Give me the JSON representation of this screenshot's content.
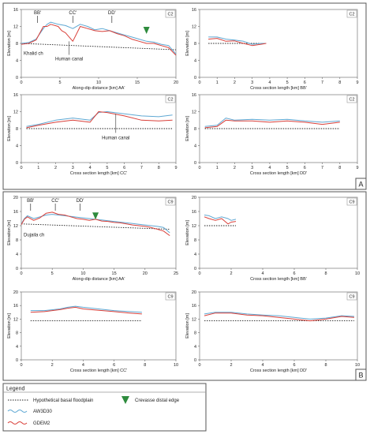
{
  "colors": {
    "aw3d30": "#5fa8d3",
    "gdem2": "#d9403a",
    "floodplain": "#222222",
    "crevasse": "#2e8b3d",
    "frame": "#555555"
  },
  "panel_labels": [
    "A",
    "B"
  ],
  "legend": {
    "title": "Legend",
    "items": [
      {
        "label": "Hypothetical basal floodplain",
        "kind": "dotted"
      },
      {
        "label": "Crevasse distal edge",
        "kind": "triangle"
      },
      {
        "label": "AW3D30",
        "kind": "line-blue"
      },
      {
        "label": "GDEM2",
        "kind": "line-red"
      }
    ]
  },
  "chart_data": [
    {
      "id": "A-AA",
      "type": "line",
      "site": "C2",
      "xlabel": "Along-dip distance [km] AA'",
      "ylabel": "Elevation [m]",
      "xlim": [
        0,
        21
      ],
      "ylim": [
        0,
        16
      ],
      "xticks": [
        "0",
        "5",
        "10",
        "15",
        "20"
      ],
      "yticks": [
        "0",
        "4",
        "8",
        "12",
        "16"
      ],
      "floodplain": [
        [
          0,
          8.0
        ],
        [
          21,
          6.5
        ]
      ],
      "series": [
        {
          "name": "AW3D30",
          "x": [
            0,
            1,
            2,
            3,
            3.5,
            4,
            5,
            6,
            7,
            8,
            9,
            10,
            11,
            12,
            13,
            14,
            15,
            16,
            17,
            18,
            19,
            20,
            21
          ],
          "y": [
            8.0,
            8.2,
            9.0,
            11.5,
            12.5,
            13,
            12.5,
            12.2,
            11.5,
            12.5,
            12.0,
            11.2,
            11.5,
            11.0,
            10.5,
            10.0,
            9.5,
            9.0,
            8.5,
            8.3,
            7.8,
            7.5,
            5.5
          ]
        },
        {
          "name": "GDEM2",
          "x": [
            0,
            1,
            2,
            3,
            3.5,
            4,
            5,
            5.5,
            6,
            7,
            8,
            9,
            10,
            11,
            12,
            13,
            14,
            15,
            16,
            17,
            18,
            19,
            20,
            21
          ],
          "y": [
            7.8,
            8.0,
            8.8,
            12.0,
            12.0,
            12.5,
            12.0,
            11.0,
            10.5,
            8.5,
            12.0,
            11.5,
            11.0,
            10.8,
            11.0,
            10.3,
            9.8,
            9.0,
            8.5,
            8.0,
            8.0,
            7.5,
            7.0,
            5.2
          ]
        }
      ],
      "annotations": [
        {
          "text": "BB'",
          "x": 2.2
        },
        {
          "text": "CC'",
          "x": 7
        },
        {
          "text": "DD'",
          "x": 12.3
        },
        {
          "text": "Khalid ch",
          "x": 0.5
        },
        {
          "text": "Human canal",
          "x": 6.5
        }
      ],
      "crevasse_x": 17
    },
    {
      "id": "A-BB",
      "type": "line",
      "site": "C2",
      "xlabel": "Cross section length [km] BB'",
      "ylabel": "Elevation [m]",
      "xlim": [
        0,
        9
      ],
      "ylim": [
        0,
        16
      ],
      "xticks": [
        "0",
        "1",
        "2",
        "3",
        "4",
        "5",
        "6",
        "7",
        "8",
        "9"
      ],
      "yticks": [
        "0",
        "4",
        "8",
        "12",
        "16"
      ],
      "floodplain": [
        [
          0.5,
          8.0
        ],
        [
          3.8,
          8.0
        ]
      ],
      "series": [
        {
          "name": "AW3D30",
          "x": [
            0.5,
            1,
            1.5,
            2,
            2.5,
            3,
            3.5,
            3.8
          ],
          "y": [
            9.5,
            9.5,
            9.0,
            8.8,
            8.5,
            7.8,
            8.0,
            8.0
          ]
        },
        {
          "name": "GDEM2",
          "x": [
            0.5,
            1,
            1.5,
            2,
            2.5,
            3,
            3.5,
            3.8
          ],
          "y": [
            9.0,
            9.2,
            8.5,
            8.6,
            8.0,
            7.5,
            7.8,
            8.0
          ]
        }
      ]
    },
    {
      "id": "A-CC",
      "type": "line",
      "site": "C2",
      "xlabel": "Cross section length [km] CC'",
      "ylabel": "Elevation [m]",
      "xlim": [
        0,
        9
      ],
      "ylim": [
        0,
        16
      ],
      "xticks": [
        "0",
        "1",
        "2",
        "3",
        "4",
        "5",
        "6",
        "7",
        "8",
        "9"
      ],
      "yticks": [
        "0",
        "4",
        "8",
        "12",
        "16"
      ],
      "floodplain": [
        [
          0.3,
          8.0
        ],
        [
          8.8,
          8.0
        ]
      ],
      "series": [
        {
          "name": "AW3D30",
          "x": [
            0.3,
            1,
            2,
            3,
            4,
            4.5,
            5,
            6,
            7,
            8,
            8.8
          ],
          "y": [
            8.5,
            9.0,
            10.0,
            10.5,
            10.0,
            11.8,
            12.0,
            11.5,
            11.0,
            10.8,
            11.2
          ]
        },
        {
          "name": "GDEM2",
          "x": [
            0.3,
            1,
            2,
            3,
            4,
            4.5,
            5,
            6,
            7,
            8,
            8.8
          ],
          "y": [
            8.2,
            8.8,
            9.5,
            10.0,
            9.5,
            12.0,
            11.8,
            11.0,
            10.0,
            9.8,
            10.0
          ]
        }
      ],
      "annotations": [
        {
          "text": "Human canal",
          "x": 5.5
        }
      ]
    },
    {
      "id": "A-DD",
      "type": "line",
      "site": "C2",
      "xlabel": "Cross section length [km] DD'",
      "ylabel": "Elevation [m]",
      "xlim": [
        0,
        9
      ],
      "ylim": [
        0,
        16
      ],
      "xticks": [
        "0",
        "1",
        "2",
        "3",
        "4",
        "5",
        "6",
        "7",
        "8",
        "9"
      ],
      "yticks": [
        "0",
        "4",
        "8",
        "12",
        "16"
      ],
      "floodplain": [
        [
          0.3,
          8.0
        ],
        [
          8.0,
          8.0
        ]
      ],
      "series": [
        {
          "name": "AW3D30",
          "x": [
            0.3,
            1,
            1.5,
            2,
            3,
            4,
            5,
            6,
            7,
            8
          ],
          "y": [
            8.5,
            8.8,
            10.5,
            10.0,
            10.2,
            10.0,
            10.2,
            9.8,
            9.5,
            9.8
          ]
        },
        {
          "name": "GDEM2",
          "x": [
            0.3,
            1,
            1.5,
            2,
            3,
            4,
            5,
            6,
            7,
            8
          ],
          "y": [
            8.2,
            8.5,
            10.0,
            9.8,
            9.8,
            9.5,
            9.8,
            9.5,
            9.0,
            9.5
          ]
        }
      ]
    },
    {
      "id": "B-AA",
      "type": "line",
      "site": "C9",
      "xlabel": "Along-dip distance [km] AA'",
      "ylabel": "Elevation [m]",
      "xlim": [
        0,
        25
      ],
      "ylim": [
        0,
        20
      ],
      "xticks": [
        "0",
        "5",
        "10",
        "15",
        "20",
        "25"
      ],
      "yticks": [
        "0",
        "4",
        "8",
        "12",
        "16",
        "20"
      ],
      "floodplain": [
        [
          0,
          12.5
        ],
        [
          24,
          11.0
        ]
      ],
      "series": [
        {
          "name": "AW3D30",
          "x": [
            0,
            0.5,
            1,
            2,
            3,
            4,
            5,
            6,
            7,
            8,
            9,
            10,
            11,
            12,
            13,
            14,
            15,
            16,
            17,
            18,
            19,
            20,
            21,
            22,
            23,
            24
          ],
          "y": [
            12.5,
            14.0,
            14.8,
            14.0,
            14.5,
            15.0,
            15.2,
            15.0,
            14.8,
            14.6,
            14.4,
            14.2,
            14.0,
            13.8,
            13.6,
            13.4,
            13.2,
            13.0,
            12.8,
            12.6,
            12.4,
            12.2,
            12.0,
            11.8,
            11.5,
            10.0
          ]
        },
        {
          "name": "GDEM2",
          "x": [
            0,
            0.5,
            1,
            2,
            3,
            4,
            5,
            6,
            7,
            8,
            9,
            10,
            11,
            12,
            13,
            14,
            15,
            16,
            17,
            18,
            19,
            20,
            21,
            22,
            23,
            24
          ],
          "y": [
            12.3,
            13.8,
            14.5,
            13.5,
            14.2,
            15.5,
            15.8,
            15.2,
            15.0,
            14.5,
            14.0,
            13.8,
            13.5,
            13.8,
            13.3,
            13.2,
            12.9,
            12.8,
            12.5,
            12.2,
            12.0,
            11.8,
            11.5,
            11.0,
            10.5,
            9.2
          ]
        }
      ],
      "annotations": [
        {
          "text": "BB'",
          "x": 1.5
        },
        {
          "text": "CC'",
          "x": 5.5
        },
        {
          "text": "DD'",
          "x": 9.5
        },
        {
          "text": "Dujaila ch",
          "x": 0.5
        }
      ],
      "crevasse_x": 12
    },
    {
      "id": "B-BB",
      "type": "line",
      "site": "C9",
      "xlabel": "Cross section length [km] BB'",
      "ylabel": "Elevation [m]",
      "xlim": [
        0,
        10
      ],
      "ylim": [
        0,
        20
      ],
      "xticks": [
        "0",
        "2",
        "4",
        "6",
        "8",
        "10"
      ],
      "yticks": [
        "0",
        "4",
        "8",
        "12",
        "16",
        "20"
      ],
      "floodplain": [
        [
          0.3,
          12.0
        ],
        [
          2.3,
          12.0
        ]
      ],
      "series": [
        {
          "name": "AW3D30",
          "x": [
            0.3,
            0.6,
            1,
            1.4,
            1.8,
            2.0,
            2.3
          ],
          "y": [
            15.0,
            14.8,
            14.0,
            14.5,
            14.0,
            13.5,
            13.8
          ]
        },
        {
          "name": "GDEM2",
          "x": [
            0.3,
            0.6,
            1,
            1.4,
            1.8,
            2.0,
            2.3
          ],
          "y": [
            14.5,
            14.0,
            13.5,
            14.0,
            12.5,
            13.0,
            13.2
          ]
        }
      ]
    },
    {
      "id": "B-CC",
      "type": "line",
      "site": "C9",
      "xlabel": "Cross section length [km] CC'",
      "ylabel": "Elevation [m]",
      "xlim": [
        0,
        10
      ],
      "ylim": [
        0,
        20
      ],
      "xticks": [
        "0",
        "2",
        "4",
        "6",
        "8",
        "10"
      ],
      "yticks": [
        "0",
        "4",
        "8",
        "12",
        "16",
        "20"
      ],
      "floodplain": [
        [
          0.6,
          11.5
        ],
        [
          7.8,
          11.5
        ]
      ],
      "series": [
        {
          "name": "AW3D30",
          "x": [
            0.6,
            1.5,
            2.5,
            3.0,
            3.5,
            4.0,
            5.0,
            6.0,
            7.0,
            7.8
          ],
          "y": [
            14.5,
            14.5,
            15.0,
            15.5,
            15.8,
            15.5,
            15.0,
            14.5,
            14.2,
            14.0
          ]
        },
        {
          "name": "GDEM2",
          "x": [
            0.6,
            1.5,
            2.5,
            3.0,
            3.5,
            4.0,
            5.0,
            6.0,
            7.0,
            7.8
          ],
          "y": [
            14.0,
            14.2,
            14.8,
            15.2,
            15.5,
            15.0,
            14.6,
            14.2,
            13.8,
            13.5
          ]
        }
      ]
    },
    {
      "id": "B-DD",
      "type": "line",
      "site": "C9",
      "xlabel": "Cross section length [km] DD'",
      "ylabel": "Elevation [m]",
      "xlim": [
        0,
        10
      ],
      "ylim": [
        0,
        20
      ],
      "xticks": [
        "0",
        "2",
        "4",
        "6",
        "8",
        "10"
      ],
      "yticks": [
        "0",
        "4",
        "8",
        "12",
        "16",
        "20"
      ],
      "floodplain": [
        [
          0.3,
          11.5
        ],
        [
          9.8,
          11.5
        ]
      ],
      "series": [
        {
          "name": "AW3D30",
          "x": [
            0.3,
            1,
            2,
            3,
            4,
            5,
            6,
            7,
            8,
            9,
            9.8
          ],
          "y": [
            13.5,
            14.0,
            14.0,
            13.5,
            13.2,
            13.0,
            12.5,
            12.0,
            12.3,
            13.0,
            12.8
          ]
        },
        {
          "name": "GDEM2",
          "x": [
            0.3,
            1,
            2,
            3,
            4,
            5,
            6,
            7,
            8,
            9,
            9.8
          ],
          "y": [
            13.0,
            13.8,
            13.8,
            13.2,
            13.0,
            12.5,
            12.0,
            11.5,
            12.0,
            12.8,
            12.5
          ]
        }
      ]
    }
  ]
}
